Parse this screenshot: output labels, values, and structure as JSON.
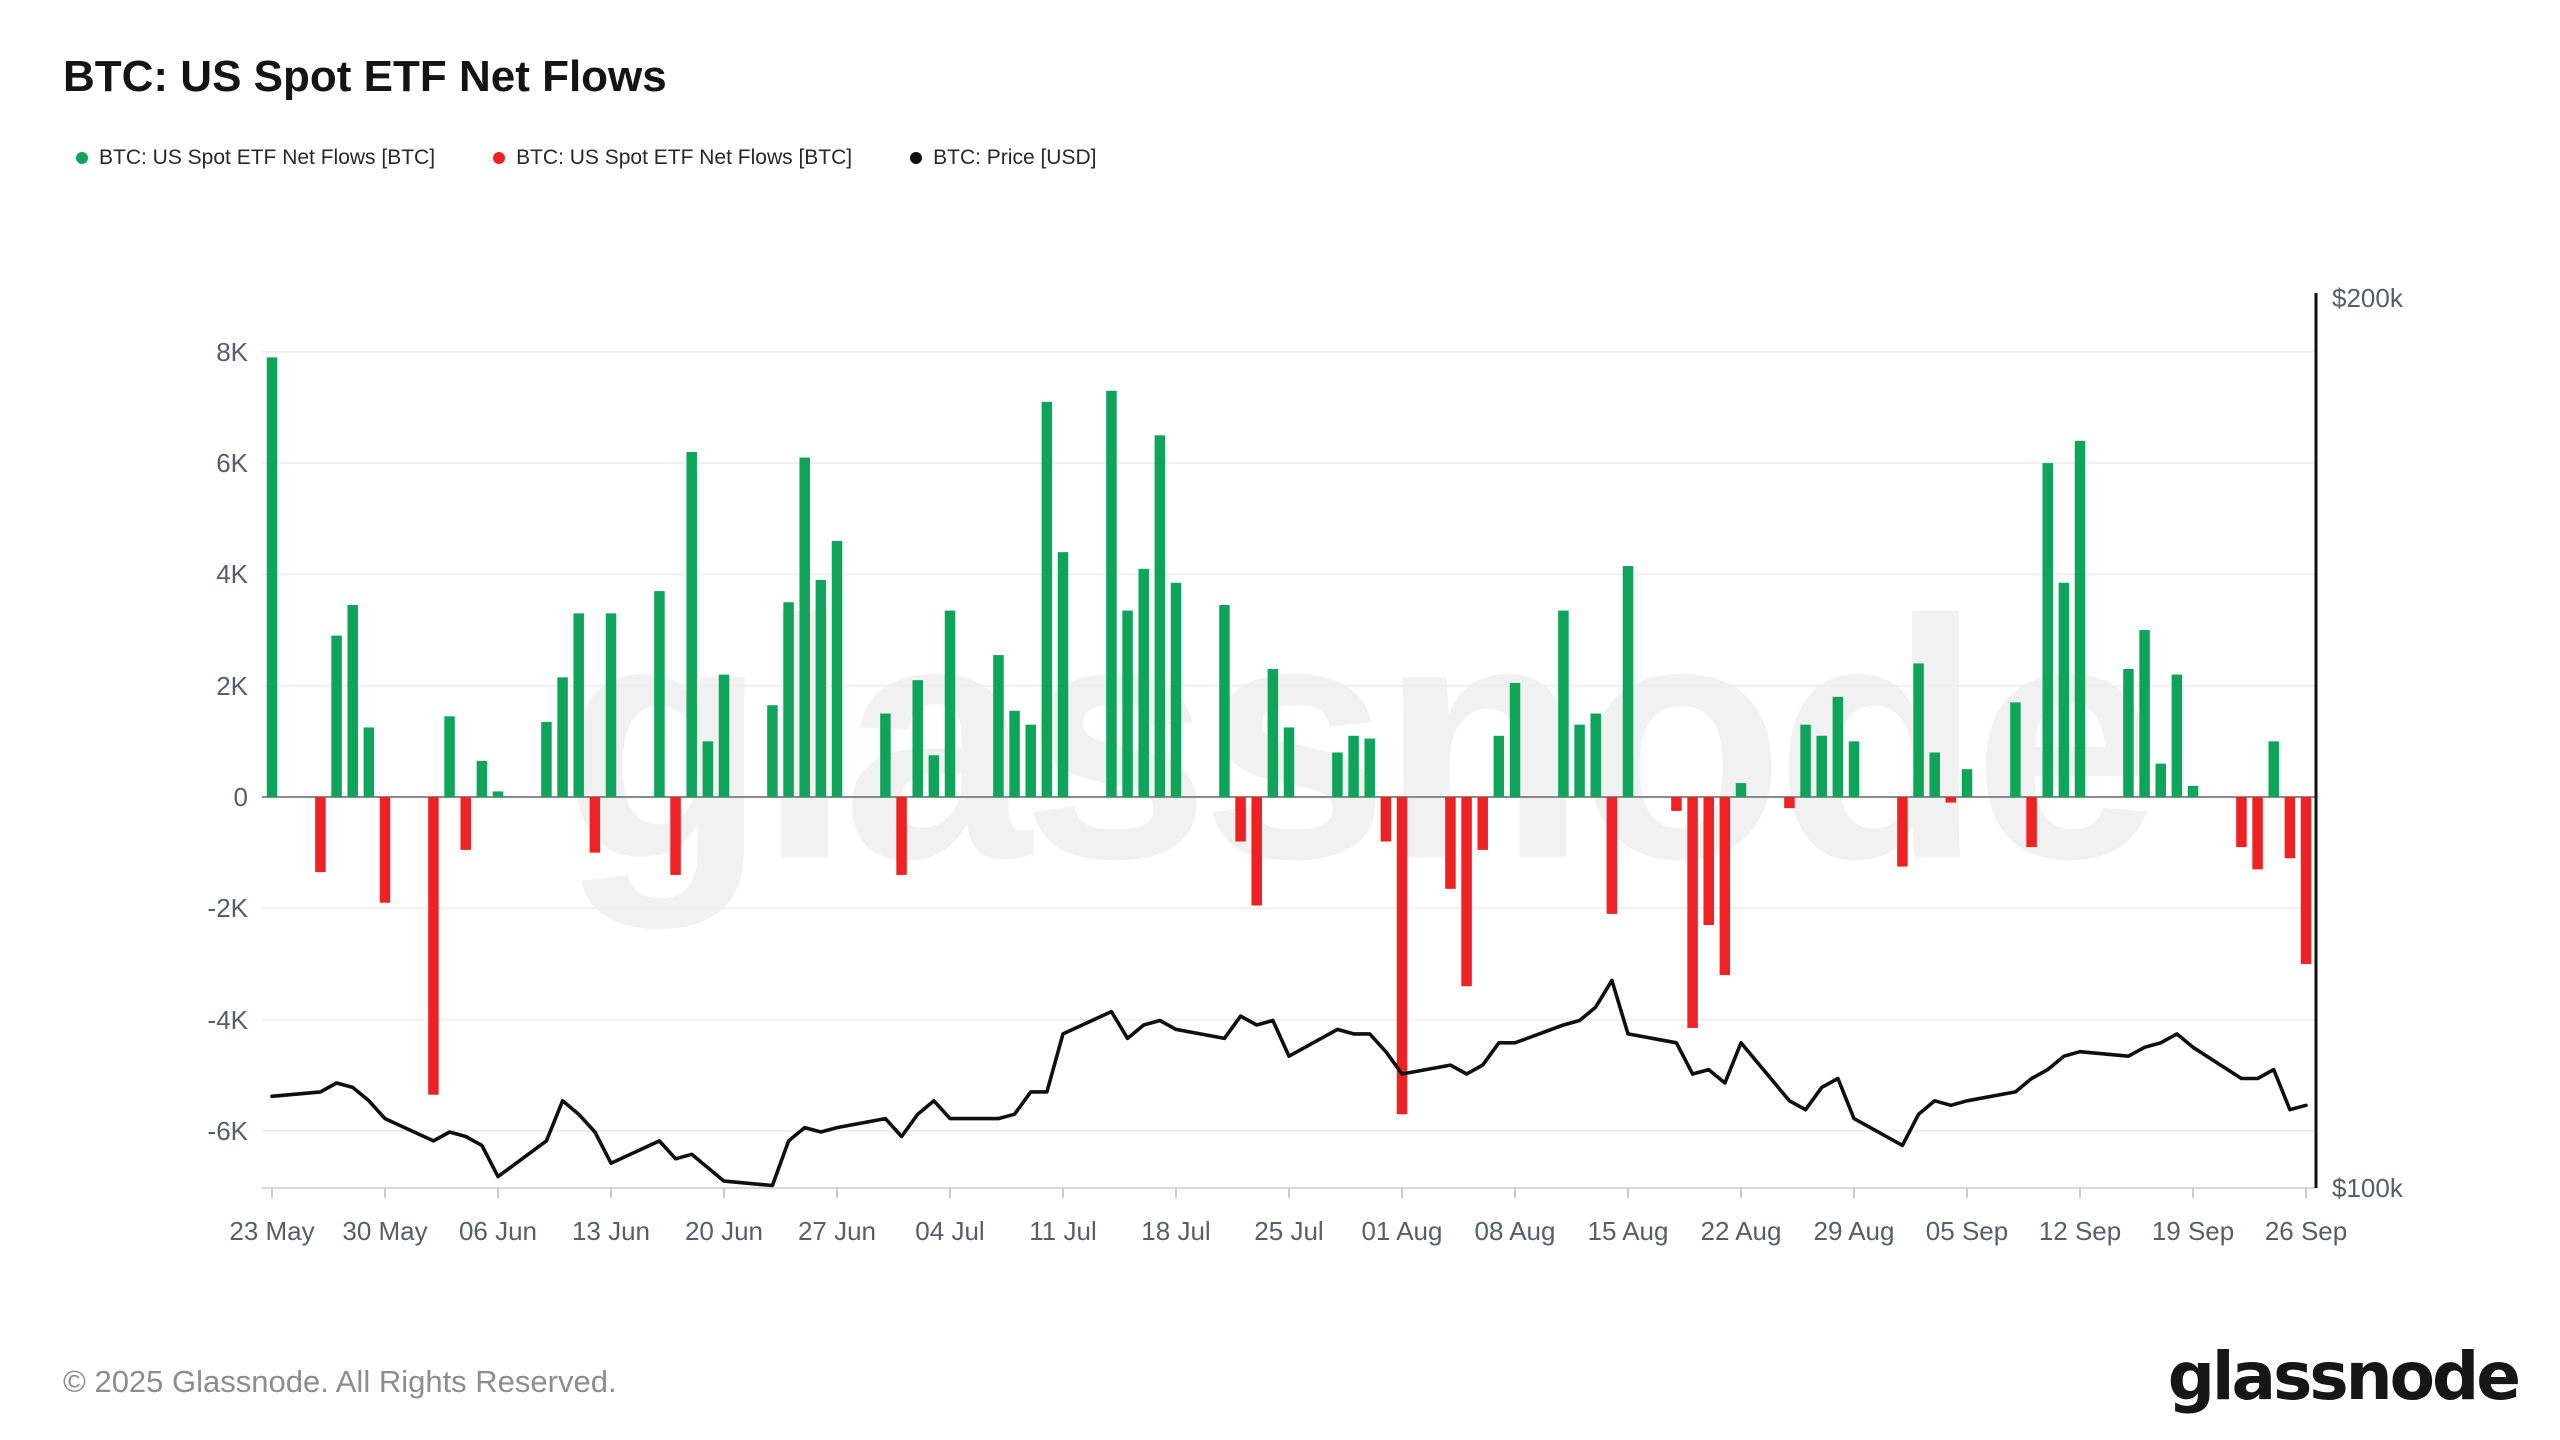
{
  "title": "BTC: US Spot ETF Net Flows",
  "legend": [
    {
      "label": "BTC: US Spot ETF Net Flows [BTC]",
      "color": "#0ea55a",
      "marker": "dot"
    },
    {
      "label": "BTC: US Spot ETF Net Flows [BTC]",
      "color": "#ee2222",
      "marker": "dot"
    },
    {
      "label": "BTC: Price [USD]",
      "color": "#111111",
      "marker": "dot"
    }
  ],
  "watermark": "glassnode",
  "footer": {
    "copyright": "© 2025 Glassnode. All Rights Reserved.",
    "brand": "glassnode"
  },
  "colors": {
    "positive_bar": "#0ea55a",
    "negative_bar": "#ee2222",
    "price_line": "#0f0f0f",
    "gridline": "#efefef",
    "zero_line": "#8a8a8a",
    "axis_line": "#111111",
    "axis_text": "#565e6b",
    "background": "#ffffff"
  },
  "chart_data": {
    "type": "bar+line",
    "title": "BTC: US Spot ETF Net Flows",
    "x_start_date": "2025-05-23",
    "x_end_date": "2025-09-26",
    "x_ticks": [
      {
        "label": "23 May",
        "day": 0
      },
      {
        "label": "30 May",
        "day": 7
      },
      {
        "label": "06 Jun",
        "day": 14
      },
      {
        "label": "13 Jun",
        "day": 21
      },
      {
        "label": "20 Jun",
        "day": 28
      },
      {
        "label": "27 Jun",
        "day": 35
      },
      {
        "label": "04 Jul",
        "day": 42
      },
      {
        "label": "11 Jul",
        "day": 49
      },
      {
        "label": "18 Jul",
        "day": 56
      },
      {
        "label": "25 Jul",
        "day": 63
      },
      {
        "label": "01 Aug",
        "day": 70
      },
      {
        "label": "08 Aug",
        "day": 77
      },
      {
        "label": "15 Aug",
        "day": 84
      },
      {
        "label": "22 Aug",
        "day": 91
      },
      {
        "label": "29 Aug",
        "day": 98
      },
      {
        "label": "05 Sep",
        "day": 105
      },
      {
        "label": "12 Sep",
        "day": 112
      },
      {
        "label": "19 Sep",
        "day": 119
      },
      {
        "label": "26 Sep",
        "day": 126
      }
    ],
    "y_left": {
      "unit": "BTC",
      "ticks": [
        {
          "label": "8K",
          "value": 8
        },
        {
          "label": "6K",
          "value": 6
        },
        {
          "label": "4K",
          "value": 4
        },
        {
          "label": "2K",
          "value": 2
        },
        {
          "label": "0",
          "value": 0
        },
        {
          "label": "-2K",
          "value": -2
        },
        {
          "label": "-4K",
          "value": -4
        },
        {
          "label": "-6K",
          "value": -6
        }
      ]
    },
    "y_right": {
      "unit": "USD",
      "labels": [
        {
          "text": "$200k",
          "value": 200
        },
        {
          "text": "$100k",
          "value": 100
        }
      ]
    },
    "dates": [
      "2025-05-23",
      "2025-05-26",
      "2025-05-27",
      "2025-05-28",
      "2025-05-29",
      "2025-05-30",
      "2025-06-02",
      "2025-06-03",
      "2025-06-04",
      "2025-06-05",
      "2025-06-06",
      "2025-06-09",
      "2025-06-10",
      "2025-06-11",
      "2025-06-12",
      "2025-06-13",
      "2025-06-16",
      "2025-06-17",
      "2025-06-18",
      "2025-06-19",
      "2025-06-20",
      "2025-06-23",
      "2025-06-24",
      "2025-06-25",
      "2025-06-26",
      "2025-06-27",
      "2025-06-30",
      "2025-07-01",
      "2025-07-02",
      "2025-07-03",
      "2025-07-04",
      "2025-07-07",
      "2025-07-08",
      "2025-07-09",
      "2025-07-10",
      "2025-07-11",
      "2025-07-14",
      "2025-07-15",
      "2025-07-16",
      "2025-07-17",
      "2025-07-18",
      "2025-07-21",
      "2025-07-22",
      "2025-07-23",
      "2025-07-24",
      "2025-07-25",
      "2025-07-28",
      "2025-07-29",
      "2025-07-30",
      "2025-07-31",
      "2025-08-01",
      "2025-08-04",
      "2025-08-05",
      "2025-08-06",
      "2025-08-07",
      "2025-08-08",
      "2025-08-11",
      "2025-08-12",
      "2025-08-13",
      "2025-08-14",
      "2025-08-15",
      "2025-08-18",
      "2025-08-19",
      "2025-08-20",
      "2025-08-21",
      "2025-08-22",
      "2025-08-25",
      "2025-08-26",
      "2025-08-27",
      "2025-08-28",
      "2025-08-29",
      "2025-09-01",
      "2025-09-02",
      "2025-09-03",
      "2025-09-04",
      "2025-09-05",
      "2025-09-08",
      "2025-09-09",
      "2025-09-10",
      "2025-09-11",
      "2025-09-12",
      "2025-09-15",
      "2025-09-16",
      "2025-09-17",
      "2025-09-18",
      "2025-09-19",
      "2025-09-22",
      "2025-09-23",
      "2025-09-24",
      "2025-09-25",
      "2025-09-26"
    ],
    "flows_k_btc": [
      7.9,
      -1.35,
      2.9,
      3.45,
      1.25,
      -1.9,
      -5.35,
      1.45,
      -0.95,
      0.65,
      0.1,
      1.35,
      2.15,
      3.3,
      -1.0,
      3.3,
      3.7,
      -1.4,
      6.2,
      1.0,
      2.2,
      1.65,
      3.5,
      6.1,
      3.9,
      4.6,
      1.5,
      -1.4,
      2.1,
      0.75,
      3.35,
      2.55,
      1.55,
      1.3,
      7.1,
      4.4,
      7.3,
      3.35,
      4.1,
      6.5,
      3.85,
      3.45,
      -0.8,
      -1.95,
      2.3,
      1.25,
      0.8,
      1.1,
      1.05,
      -0.8,
      -5.7,
      -1.65,
      -3.4,
      -0.95,
      1.1,
      2.05,
      3.35,
      1.3,
      1.5,
      -2.1,
      4.15,
      -0.25,
      -4.15,
      -2.3,
      -3.2,
      0.25,
      -0.2,
      1.3,
      1.1,
      1.8,
      1.0,
      -1.25,
      2.4,
      0.8,
      -0.1,
      0.5,
      1.7,
      -0.9,
      6.0,
      3.85,
      6.4,
      2.3,
      3.0,
      0.6,
      2.2,
      0.2,
      -0.9,
      -1.3,
      1.0,
      -1.1,
      -3.0
    ],
    "price_k_usd": [
      110.5,
      111,
      112,
      111.5,
      110,
      108,
      105.5,
      106.5,
      106,
      105,
      101.5,
      105.5,
      110,
      108.5,
      106.5,
      103,
      105.5,
      103.5,
      104,
      102.5,
      101,
      100.5,
      105.5,
      107,
      106.5,
      107,
      108,
      106,
      108.5,
      110,
      108,
      108,
      108.5,
      111,
      111,
      117.5,
      120,
      117,
      118.5,
      119,
      118,
      117,
      119.5,
      118.5,
      119,
      115,
      118,
      117.5,
      117.5,
      115.5,
      113,
      114,
      113,
      114,
      116.5,
      116.5,
      118.5,
      119,
      120.5,
      123.5,
      117.5,
      116.5,
      113,
      113.5,
      112,
      116.5,
      110,
      109,
      111.5,
      112.5,
      108,
      105,
      108.5,
      110,
      109.5,
      110,
      111,
      112.5,
      113.5,
      115,
      115.5,
      115,
      116,
      116.5,
      117.5,
      116,
      112.5,
      112.5,
      113.5,
      109,
      109.5
    ]
  }
}
